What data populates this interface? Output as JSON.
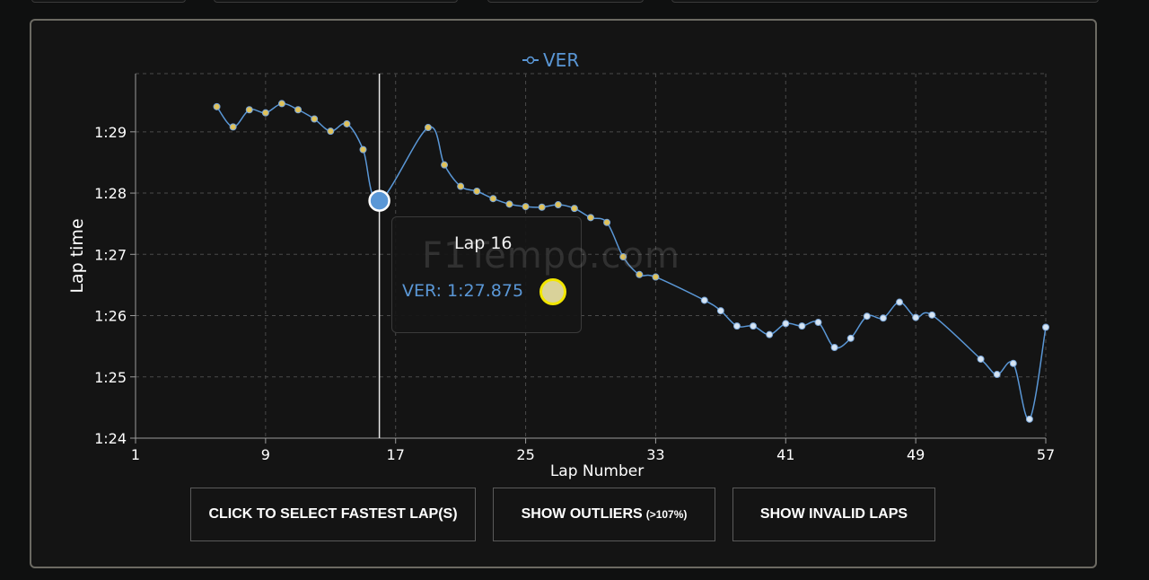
{
  "buttons": {
    "fastest": "CLICK TO SELECT FASTEST LAP(S)",
    "outliers": "SHOW OUTLIERS",
    "outliers_note": "(>107%)",
    "invalid": "SHOW INVALID LAPS"
  },
  "tooltip": {
    "title": "Lap 16",
    "value": "VER: 1:27.875",
    "watermark": "F1Tempo.com"
  },
  "colors": {
    "series": "#5a97d6",
    "marker_fill_hot": "#e0c25a",
    "marker_fill_cool": "#d6e4f2",
    "grid": "#4a4a4a"
  },
  "chart_data": {
    "type": "line",
    "xlabel": "Lap Number",
    "ylabel": "Lap time",
    "xlim": [
      1,
      57
    ],
    "ylim": [
      84.0,
      89.95
    ],
    "x_ticks": [
      1,
      9,
      17,
      25,
      33,
      41,
      49,
      57
    ],
    "y_ticks": [
      {
        "v": 84,
        "label": "1:24"
      },
      {
        "v": 85,
        "label": "1:25"
      },
      {
        "v": 86,
        "label": "1:26"
      },
      {
        "v": 87,
        "label": "1:27"
      },
      {
        "v": 88,
        "label": "1:28"
      },
      {
        "v": 89,
        "label": "1:29"
      }
    ],
    "legend": {
      "position": "top-center"
    },
    "grid": true,
    "highlight": {
      "lap": 16,
      "time": 87.875
    },
    "series": [
      {
        "name": "VER",
        "points": [
          [
            6,
            89.41
          ],
          [
            7,
            89.08
          ],
          [
            8,
            89.36
          ],
          [
            9,
            89.31
          ],
          [
            10,
            89.46
          ],
          [
            11,
            89.36
          ],
          [
            12,
            89.21
          ],
          [
            13,
            89.01
          ],
          [
            14,
            89.13
          ],
          [
            15,
            88.71
          ],
          [
            16,
            87.875
          ],
          [
            19,
            89.07
          ],
          [
            20,
            88.46
          ],
          [
            21,
            88.11
          ],
          [
            22,
            88.03
          ],
          [
            23,
            87.91
          ],
          [
            24,
            87.82
          ],
          [
            25,
            87.78
          ],
          [
            26,
            87.77
          ],
          [
            27,
            87.81
          ],
          [
            28,
            87.75
          ],
          [
            29,
            87.6
          ],
          [
            30,
            87.52
          ],
          [
            31,
            86.96
          ],
          [
            32,
            86.67
          ],
          [
            33,
            86.63
          ],
          [
            36,
            86.25
          ],
          [
            37,
            86.08
          ],
          [
            38,
            85.83
          ],
          [
            39,
            85.83
          ],
          [
            40,
            85.69
          ],
          [
            41,
            85.87
          ],
          [
            42,
            85.83
          ],
          [
            43,
            85.89
          ],
          [
            44,
            85.48
          ],
          [
            45,
            85.63
          ],
          [
            46,
            85.99
          ],
          [
            47,
            85.96
          ],
          [
            48,
            86.22
          ],
          [
            49,
            85.97
          ],
          [
            50,
            86.01
          ],
          [
            53,
            85.29
          ],
          [
            54,
            85.04
          ],
          [
            55,
            85.22
          ],
          [
            56,
            84.31
          ],
          [
            57,
            85.81
          ]
        ]
      }
    ]
  }
}
